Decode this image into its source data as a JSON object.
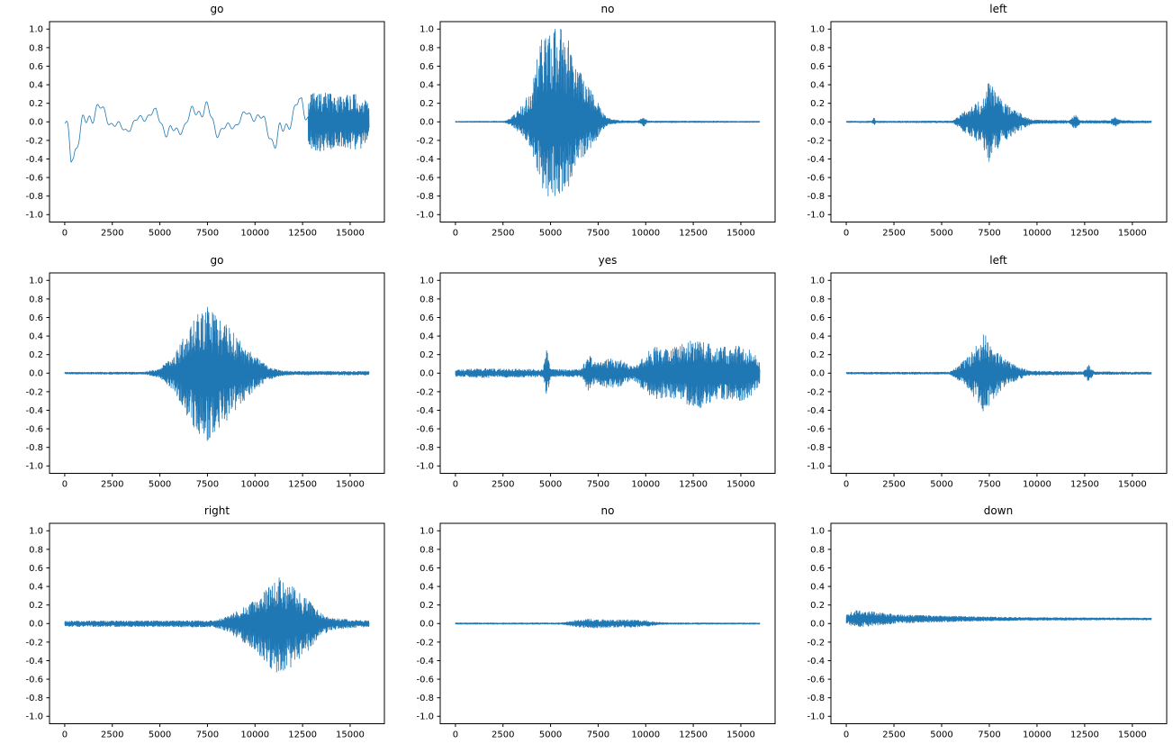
{
  "figure": {
    "background": "#ffffff",
    "grid": {
      "rows": 3,
      "cols": 3
    },
    "axis_color": "#000000"
  },
  "chart_data": [
    {
      "type": "line",
      "title": "go",
      "xlabel": "",
      "ylabel": "",
      "line_color": "#1f77b4",
      "xlim": [
        -800,
        16800
      ],
      "ylim": [
        -1.08,
        1.08
      ],
      "xticks": [
        0,
        2500,
        5000,
        7500,
        10000,
        12500,
        15000
      ],
      "yticks": [
        -1.0,
        -0.8,
        -0.6,
        -0.4,
        -0.2,
        0.0,
        0.2,
        0.4,
        0.6,
        0.8,
        1.0
      ],
      "style": "smooth",
      "dense_from": 12800,
      "offset": 0,
      "envelope": [
        [
          0,
          0.22
        ],
        [
          300,
          0.45
        ],
        [
          700,
          0.3
        ],
        [
          1200,
          0.32
        ],
        [
          1800,
          0.18
        ],
        [
          2500,
          0.12
        ],
        [
          3500,
          0.1
        ],
        [
          4500,
          0.12
        ],
        [
          5500,
          0.22
        ],
        [
          6200,
          0.12
        ],
        [
          7000,
          0.22
        ],
        [
          7600,
          0.25
        ],
        [
          8300,
          0.12
        ],
        [
          9000,
          0.1
        ],
        [
          9800,
          0.12
        ],
        [
          10800,
          0.2
        ],
        [
          11300,
          0.38
        ],
        [
          11900,
          0.2
        ],
        [
          12800,
          0.3
        ],
        [
          13500,
          0.32
        ],
        [
          14500,
          0.28
        ],
        [
          15500,
          0.3
        ],
        [
          16000,
          0.18
        ]
      ]
    },
    {
      "type": "line",
      "title": "no",
      "xlabel": "",
      "ylabel": "",
      "line_color": "#1f77b4",
      "xlim": [
        -800,
        16800
      ],
      "ylim": [
        -1.08,
        1.08
      ],
      "xticks": [
        0,
        2500,
        5000,
        7500,
        10000,
        12500,
        15000
      ],
      "yticks": [
        -1.0,
        -0.8,
        -0.6,
        -0.4,
        -0.2,
        0.0,
        0.2,
        0.4,
        0.6,
        0.8,
        1.0
      ],
      "style": "dense",
      "offset": 0,
      "neg_scale": 0.8,
      "envelope": [
        [
          0,
          0.006
        ],
        [
          2600,
          0.008
        ],
        [
          3000,
          0.06
        ],
        [
          3500,
          0.18
        ],
        [
          4000,
          0.35
        ],
        [
          4400,
          0.8
        ],
        [
          4700,
          1.0
        ],
        [
          5600,
          1.0
        ],
        [
          6000,
          0.85
        ],
        [
          6400,
          0.6
        ],
        [
          6900,
          0.4
        ],
        [
          7300,
          0.3
        ],
        [
          7600,
          0.15
        ],
        [
          8000,
          0.04
        ],
        [
          8600,
          0.015
        ],
        [
          9600,
          0.01
        ],
        [
          9900,
          0.06
        ],
        [
          10100,
          0.01
        ],
        [
          16000,
          0.007
        ]
      ]
    },
    {
      "type": "line",
      "title": "left",
      "xlabel": "",
      "ylabel": "",
      "line_color": "#1f77b4",
      "xlim": [
        -800,
        16800
      ],
      "ylim": [
        -1.08,
        1.08
      ],
      "xticks": [
        0,
        2500,
        5000,
        7500,
        10000,
        12500,
        15000
      ],
      "yticks": [
        -1.0,
        -0.8,
        -0.6,
        -0.4,
        -0.2,
        0.0,
        0.2,
        0.4,
        0.6,
        0.8,
        1.0
      ],
      "style": "dense",
      "offset": 0,
      "envelope": [
        [
          0,
          0.007
        ],
        [
          1350,
          0.008
        ],
        [
          1450,
          0.05
        ],
        [
          1550,
          0.008
        ],
        [
          5600,
          0.01
        ],
        [
          6100,
          0.1
        ],
        [
          6700,
          0.18
        ],
        [
          7200,
          0.28
        ],
        [
          7500,
          0.45
        ],
        [
          7800,
          0.32
        ],
        [
          8300,
          0.2
        ],
        [
          8900,
          0.12
        ],
        [
          9400,
          0.06
        ],
        [
          9800,
          0.02
        ],
        [
          11700,
          0.015
        ],
        [
          12000,
          0.08
        ],
        [
          12300,
          0.015
        ],
        [
          13800,
          0.015
        ],
        [
          14100,
          0.05
        ],
        [
          14400,
          0.015
        ],
        [
          16000,
          0.01
        ]
      ]
    },
    {
      "type": "line",
      "title": "go",
      "xlabel": "",
      "ylabel": "",
      "line_color": "#1f77b4",
      "xlim": [
        -800,
        16800
      ],
      "ylim": [
        -1.08,
        1.08
      ],
      "xticks": [
        0,
        2500,
        5000,
        7500,
        10000,
        12500,
        15000
      ],
      "yticks": [
        -1.0,
        -0.8,
        -0.6,
        -0.4,
        -0.2,
        0.0,
        0.2,
        0.4,
        0.6,
        0.8,
        1.0
      ],
      "style": "dense",
      "offset": 0,
      "envelope": [
        [
          0,
          0.01
        ],
        [
          4200,
          0.012
        ],
        [
          5000,
          0.05
        ],
        [
          5800,
          0.2
        ],
        [
          6400,
          0.45
        ],
        [
          7000,
          0.65
        ],
        [
          7400,
          0.75
        ],
        [
          7900,
          0.62
        ],
        [
          8600,
          0.5
        ],
        [
          9300,
          0.32
        ],
        [
          10000,
          0.18
        ],
        [
          10700,
          0.07
        ],
        [
          11300,
          0.03
        ],
        [
          12000,
          0.02
        ],
        [
          13000,
          0.02
        ],
        [
          16000,
          0.02
        ]
      ]
    },
    {
      "type": "line",
      "title": "yes",
      "xlabel": "",
      "ylabel": "",
      "line_color": "#1f77b4",
      "xlim": [
        -800,
        16800
      ],
      "ylim": [
        -1.08,
        1.08
      ],
      "xticks": [
        0,
        2500,
        5000,
        7500,
        10000,
        12500,
        15000
      ],
      "yticks": [
        -1.0,
        -0.8,
        -0.6,
        -0.4,
        -0.2,
        0.0,
        0.2,
        0.4,
        0.6,
        0.8,
        1.0
      ],
      "style": "dense",
      "offset": 0,
      "envelope": [
        [
          0,
          0.035
        ],
        [
          1500,
          0.05
        ],
        [
          3000,
          0.045
        ],
        [
          4600,
          0.04
        ],
        [
          4800,
          0.26
        ],
        [
          5000,
          0.04
        ],
        [
          6600,
          0.04
        ],
        [
          7000,
          0.2
        ],
        [
          7400,
          0.1
        ],
        [
          8000,
          0.16
        ],
        [
          8700,
          0.14
        ],
        [
          9300,
          0.07
        ],
        [
          9900,
          0.2
        ],
        [
          10500,
          0.28
        ],
        [
          11200,
          0.25
        ],
        [
          12000,
          0.32
        ],
        [
          12800,
          0.38
        ],
        [
          13500,
          0.3
        ],
        [
          14300,
          0.28
        ],
        [
          15200,
          0.3
        ],
        [
          15800,
          0.2
        ],
        [
          16000,
          0.1
        ]
      ]
    },
    {
      "type": "line",
      "title": "left",
      "xlabel": "",
      "ylabel": "",
      "line_color": "#1f77b4",
      "xlim": [
        -800,
        16800
      ],
      "ylim": [
        -1.08,
        1.08
      ],
      "xticks": [
        0,
        2500,
        5000,
        7500,
        10000,
        12500,
        15000
      ],
      "yticks": [
        -1.0,
        -0.8,
        -0.6,
        -0.4,
        -0.2,
        0.0,
        0.2,
        0.4,
        0.6,
        0.8,
        1.0
      ],
      "style": "dense",
      "offset": 0,
      "envelope": [
        [
          0,
          0.01
        ],
        [
          5400,
          0.012
        ],
        [
          5900,
          0.08
        ],
        [
          6500,
          0.2
        ],
        [
          7000,
          0.35
        ],
        [
          7300,
          0.45
        ],
        [
          7700,
          0.28
        ],
        [
          8300,
          0.15
        ],
        [
          9000,
          0.07
        ],
        [
          9600,
          0.025
        ],
        [
          12400,
          0.015
        ],
        [
          12700,
          0.09
        ],
        [
          13000,
          0.015
        ],
        [
          16000,
          0.012
        ]
      ]
    },
    {
      "type": "line",
      "title": "right",
      "xlabel": "",
      "ylabel": "",
      "line_color": "#1f77b4",
      "xlim": [
        -800,
        16800
      ],
      "ylim": [
        -1.08,
        1.08
      ],
      "xticks": [
        0,
        2500,
        5000,
        7500,
        10000,
        12500,
        15000
      ],
      "yticks": [
        -1.0,
        -0.8,
        -0.6,
        -0.4,
        -0.2,
        0.0,
        0.2,
        0.4,
        0.6,
        0.8,
        1.0
      ],
      "style": "dense",
      "offset": 0,
      "neg_scale": 1.15,
      "envelope": [
        [
          0,
          0.028
        ],
        [
          7800,
          0.032
        ],
        [
          8600,
          0.08
        ],
        [
          9300,
          0.16
        ],
        [
          10000,
          0.25
        ],
        [
          10700,
          0.38
        ],
        [
          11200,
          0.5
        ],
        [
          11700,
          0.45
        ],
        [
          12200,
          0.35
        ],
        [
          12800,
          0.25
        ],
        [
          13400,
          0.12
        ],
        [
          14000,
          0.06
        ],
        [
          15000,
          0.04
        ],
        [
          16000,
          0.03
        ]
      ]
    },
    {
      "type": "line",
      "title": "no",
      "xlabel": "",
      "ylabel": "",
      "line_color": "#1f77b4",
      "xlim": [
        -800,
        16800
      ],
      "ylim": [
        -1.08,
        1.08
      ],
      "xticks": [
        0,
        2500,
        5000,
        7500,
        10000,
        12500,
        15000
      ],
      "yticks": [
        -1.0,
        -0.8,
        -0.6,
        -0.4,
        -0.2,
        0.0,
        0.2,
        0.4,
        0.6,
        0.8,
        1.0
      ],
      "style": "dense",
      "offset": 0,
      "envelope": [
        [
          0,
          0.007
        ],
        [
          5600,
          0.008
        ],
        [
          6300,
          0.035
        ],
        [
          7200,
          0.05
        ],
        [
          8200,
          0.04
        ],
        [
          9200,
          0.04
        ],
        [
          10000,
          0.035
        ],
        [
          10600,
          0.015
        ],
        [
          11200,
          0.008
        ],
        [
          16000,
          0.007
        ]
      ]
    },
    {
      "type": "line",
      "title": "down",
      "xlabel": "",
      "ylabel": "",
      "line_color": "#1f77b4",
      "xlim": [
        -800,
        16800
      ],
      "ylim": [
        -1.08,
        1.08
      ],
      "xticks": [
        0,
        2500,
        5000,
        7500,
        10000,
        12500,
        15000
      ],
      "yticks": [
        -1.0,
        -0.8,
        -0.6,
        -0.4,
        -0.2,
        0.0,
        0.2,
        0.4,
        0.6,
        0.8,
        1.0
      ],
      "style": "dense",
      "offset": 0.05,
      "envelope": [
        [
          0,
          0.05
        ],
        [
          500,
          0.09
        ],
        [
          1200,
          0.08
        ],
        [
          2000,
          0.06
        ],
        [
          3000,
          0.045
        ],
        [
          4500,
          0.035
        ],
        [
          6000,
          0.028
        ],
        [
          8000,
          0.02
        ],
        [
          10000,
          0.015
        ],
        [
          13000,
          0.012
        ],
        [
          16000,
          0.01
        ]
      ]
    }
  ]
}
